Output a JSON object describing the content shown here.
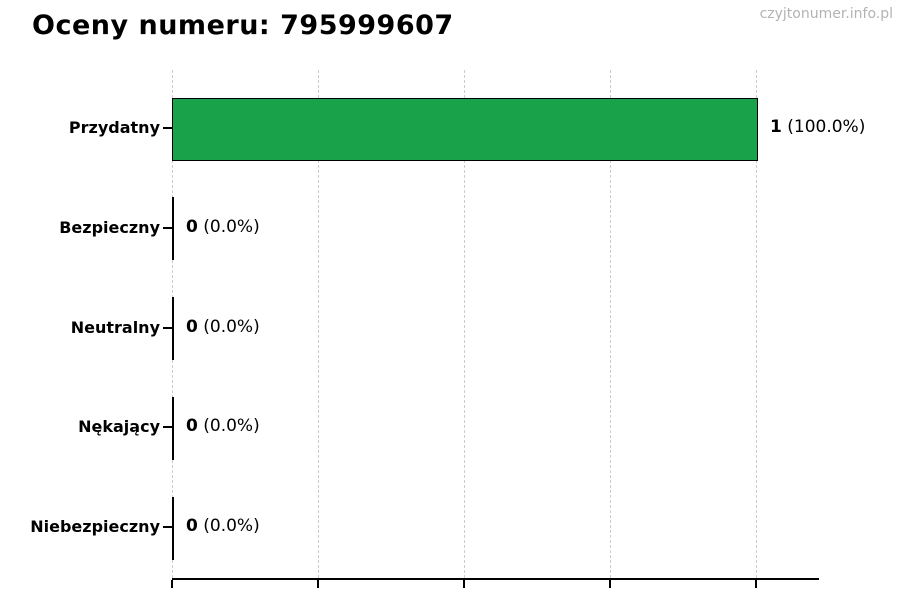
{
  "page": {
    "title": "Oceny numeru: 795999607",
    "watermark": "czyjtonumer.info.pl"
  },
  "chart_data": {
    "type": "bar",
    "orientation": "horizontal",
    "title": "Oceny numeru: 795999607",
    "watermark": "czyjtonumer.info.pl",
    "categories": [
      "Przydatny",
      "Bezpieczny",
      "Neutralny",
      "Nękający",
      "Niebezpieczny"
    ],
    "values": [
      1,
      0,
      0,
      0,
      0
    ],
    "percent_labels": [
      "100.0%",
      "0.0%",
      "0.0%",
      "0.0%",
      "0.0%"
    ],
    "value_label_texts": [
      "1 (100.0%)",
      "0 (0.0%)",
      "0 (0.0%)",
      "0 (0.0%)",
      "0 (0.0%)"
    ],
    "xlim": [
      0,
      1.1
    ],
    "x_tick_positions": [
      0,
      0.25,
      0.5,
      0.75,
      1.0
    ],
    "x_tick_labels_visible": false,
    "ylabel": "",
    "xlabel": "",
    "legend": null,
    "grid": {
      "axis": "x",
      "style": "dashed",
      "color": "#cccccc"
    },
    "bar_color": "#1aa24b",
    "bar_border_color": "#000000",
    "axis_color": "#000000",
    "text_color": "#000000",
    "watermark_color": "#b3b3b3"
  }
}
